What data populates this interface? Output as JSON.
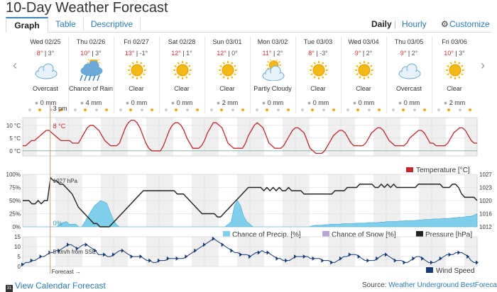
{
  "title": "10-Day Weather Forecast",
  "tabs": [
    {
      "label": "Graph",
      "active": true
    },
    {
      "label": "Table",
      "active": false
    },
    {
      "label": "Descriptive",
      "active": false
    }
  ],
  "view_toggle": {
    "daily": "Daily",
    "separator": "|",
    "hourly": "Hourly"
  },
  "customize": {
    "label": "Customize",
    "icon": "gear-icon"
  },
  "nav": {
    "prev": "‹",
    "next": "›"
  },
  "days": [
    {
      "name": "Wed 02/25",
      "hi": "8°",
      "lo": "3°",
      "icon": "cloud-icon",
      "cond": "Overcast",
      "precip": "0 mm",
      "precip_icon": "rain-drop-icon"
    },
    {
      "name": "Thu 02/26",
      "hi": "10°",
      "lo": "3°",
      "icon": "rain-cloud-icon",
      "cond": "Chance of Rain",
      "precip": "4 mm",
      "precip_icon": "rain-drop-icon"
    },
    {
      "name": "Fri 02/27",
      "hi": "13°",
      "lo": "-1°",
      "icon": "sun-icon",
      "cond": "Clear",
      "precip": "0 mm",
      "precip_icon": "rain-drop-icon"
    },
    {
      "name": "Sat 02/28",
      "hi": "12°",
      "lo": "1°",
      "icon": "sun-icon",
      "cond": "Clear",
      "precip": "0 mm",
      "precip_icon": "rain-drop-icon"
    },
    {
      "name": "Sun 03/01",
      "hi": "12°",
      "lo": "0°",
      "icon": "sun-icon",
      "cond": "Clear",
      "precip": "2 mm",
      "precip_icon": "rain-drop-icon"
    },
    {
      "name": "Mon 03/02",
      "hi": "11°",
      "lo": "2°",
      "icon": "partly-cloudy-icon",
      "cond": "Partly Cloudy",
      "precip": "0 mm",
      "precip_icon": "rain-drop-icon"
    },
    {
      "name": "Tue 03/03",
      "hi": "8°",
      "lo": "-3°",
      "icon": "sun-icon",
      "cond": "Clear",
      "precip": "0 mm",
      "precip_icon": "rain-drop-icon"
    },
    {
      "name": "Wed 03/04",
      "hi": "9°",
      "lo": "2°",
      "icon": "sun-icon",
      "cond": "Clear",
      "precip": "0 mm",
      "precip_icon": "rain-drop-icon"
    },
    {
      "name": "Thu 03/05",
      "hi": "9°",
      "lo": "2°",
      "icon": "cloud-icon",
      "cond": "Overcast",
      "precip": "0 mm",
      "precip_icon": "rain-drop-icon"
    },
    {
      "name": "Fri 03/06",
      "hi": "10°",
      "lo": "3°",
      "icon": "sun-icon",
      "cond": "Clear",
      "precip": "2 mm",
      "precip_icon": "rain-drop-icon"
    }
  ],
  "cursor": {
    "time": "3 pm",
    "temperature": "8 °C",
    "pressure": "1027 hPa",
    "precip": "0%",
    "wind": "5 km/h from SSE",
    "forecast_label": "Forecast →"
  },
  "temperature_chart": {
    "yticks": [
      "10 °C",
      "5 °C",
      "0 °C"
    ],
    "legend": "Temperature [°C]",
    "series": [
      2,
      2,
      3,
      4,
      4,
      5,
      6,
      7,
      8,
      8,
      7,
      6,
      5,
      4,
      4,
      4,
      4,
      3,
      3,
      3,
      5,
      7,
      9,
      10,
      10,
      9,
      8,
      6,
      4,
      3,
      2,
      2,
      2,
      3,
      6,
      9,
      11,
      12,
      12,
      11,
      9,
      6,
      3,
      1,
      0,
      0,
      0,
      0,
      2,
      5,
      8,
      10,
      11,
      11,
      10,
      8,
      5,
      3,
      1,
      1,
      1,
      2,
      4,
      7,
      9,
      11,
      11,
      10,
      9,
      6,
      3,
      2,
      1,
      1,
      1,
      1,
      3,
      6,
      8,
      10,
      11,
      10,
      9,
      6,
      3,
      2,
      1,
      1,
      1,
      2,
      4,
      6,
      8,
      9,
      9,
      8,
      7,
      4,
      1,
      0,
      -1,
      -1,
      -1,
      0,
      2,
      4,
      6,
      7,
      8,
      8,
      7,
      5,
      3,
      2,
      2,
      2,
      2,
      3,
      5,
      7,
      8,
      9,
      9,
      8,
      6,
      4,
      3,
      2,
      2,
      2,
      2,
      3,
      5,
      6,
      7,
      8,
      8,
      7,
      5,
      3,
      3,
      2,
      2,
      2,
      2,
      3,
      5,
      7,
      8,
      9,
      9,
      8,
      6,
      4,
      3,
      3
    ]
  },
  "precip_chart": {
    "yticks_left": [
      "100%",
      "75%",
      "50%",
      "25%",
      "0%"
    ],
    "yticks_right": [
      "1027",
      "1023",
      "1020",
      "1016",
      "1012"
    ],
    "legend_precip": "Chance of Precip. [%]",
    "legend_snow": "Chance of Snow [%]",
    "legend_pressure": "Pressure [hPa]",
    "precip": [
      0,
      0,
      0,
      0,
      0,
      0,
      0,
      0,
      0,
      0,
      0,
      0,
      5,
      8,
      10,
      5,
      5,
      5,
      0,
      0,
      10,
      20,
      30,
      40,
      45,
      50,
      48,
      45,
      30,
      15,
      5,
      0,
      0,
      0,
      0,
      0,
      0,
      0,
      0,
      0,
      0,
      0,
      0,
      0,
      0,
      0,
      0,
      0,
      0,
      0,
      0,
      0,
      0,
      0,
      0,
      0,
      0,
      0,
      0,
      0,
      0,
      0,
      0,
      0,
      0,
      0,
      5,
      10,
      40,
      50,
      40,
      20,
      10,
      5,
      0,
      0,
      0,
      0,
      0,
      0,
      0,
      0,
      0,
      0,
      0,
      0,
      0,
      0,
      0,
      0,
      0,
      0,
      0,
      2,
      3,
      3,
      3,
      4,
      4,
      5,
      5,
      5,
      5,
      6,
      6,
      6,
      6,
      7,
      7,
      7,
      7,
      8,
      8,
      8,
      8,
      9,
      9,
      10,
      10,
      10,
      10,
      11,
      11,
      12,
      12,
      12,
      12,
      13,
      13,
      14,
      14,
      14,
      15,
      15,
      15,
      16,
      16,
      16,
      17,
      17,
      18,
      18,
      19,
      20,
      20,
      22,
      25
    ],
    "pressure": [
      1020,
      1020,
      1020,
      1019,
      1019,
      1020,
      1019,
      1020,
      1020,
      1027,
      1026,
      1026,
      1025,
      1025,
      1024,
      1023,
      1022,
      1020,
      1018,
      1017,
      1016,
      1015,
      1014,
      1013,
      1013,
      1012,
      1012,
      1012,
      1012,
      1013,
      1014,
      1015,
      1016,
      1017,
      1018,
      1019,
      1020,
      1021,
      1022,
      1023,
      1023,
      1023,
      1023,
      1023,
      1023,
      1023,
      1023,
      1023,
      1023,
      1023,
      1022,
      1022,
      1022,
      1021,
      1020,
      1019,
      1018,
      1017,
      1016,
      1016,
      1016,
      1016,
      1016,
      1015,
      1015,
      1016,
      1017,
      1018,
      1019,
      1020,
      1021,
      1022,
      1023,
      1024,
      1024,
      1024,
      1024,
      1024,
      1023,
      1024,
      1023,
      1024,
      1023,
      1024,
      1023,
      1023,
      1024,
      1023,
      1023,
      1023,
      1023,
      1022,
      1022,
      1022,
      1022,
      1022,
      1022,
      1022,
      1022,
      1022,
      1022,
      1023,
      1023,
      1023,
      1023,
      1024,
      1024,
      1024,
      1024,
      1025,
      1025,
      1025,
      1025,
      1025,
      1024,
      1024,
      1025,
      1024,
      1025,
      1024,
      1025,
      1024,
      1024,
      1024,
      1024,
      1024,
      1024,
      1024,
      1025,
      1025,
      1025,
      1025,
      1025,
      1025,
      1025,
      1025,
      1024,
      1024,
      1024,
      1025,
      1025,
      1024,
      1022,
      1021,
      1021,
      1021,
      1021,
      1020
    ]
  },
  "wind_chart": {
    "yticks": [
      "15",
      "10",
      "5",
      "0"
    ],
    "legend": "Wind Speed",
    "series": [
      1,
      2,
      2,
      3,
      3,
      4,
      5,
      5,
      6,
      7,
      7,
      8,
      8,
      9,
      10,
      11,
      11,
      10,
      9,
      10,
      11,
      11,
      10,
      9,
      8,
      6,
      6,
      6,
      5,
      5,
      6,
      7,
      8,
      8,
      7,
      6,
      5,
      5,
      5,
      5,
      4,
      3,
      3,
      2,
      2,
      3,
      3,
      3,
      4,
      4,
      4,
      4,
      4,
      4,
      5,
      6,
      7,
      8,
      9,
      10,
      11,
      12,
      13,
      14,
      13,
      12,
      11,
      10,
      9,
      8,
      7,
      7,
      6,
      6,
      6,
      5,
      6,
      7,
      7,
      8,
      7,
      7,
      6,
      5,
      4,
      4,
      3,
      3,
      3,
      4,
      5,
      5,
      5,
      5,
      5,
      4,
      4,
      4,
      4,
      3,
      3,
      3,
      2,
      2,
      3,
      4,
      5,
      5,
      6,
      6,
      6,
      5,
      4,
      3,
      3,
      3,
      3,
      4,
      5,
      6,
      6,
      5,
      4,
      3,
      3,
      3,
      2,
      2,
      3,
      4,
      5,
      5,
      4,
      3,
      2,
      2,
      2,
      3,
      4,
      5,
      6,
      6,
      6,
      7,
      7,
      7,
      6,
      5,
      3,
      2,
      2
    ]
  },
  "colors": {
    "temperature": "#c0272d",
    "precip": "#7fcfea",
    "pressure": "#222222",
    "snow": "#b7a7d0",
    "wind": "#173a78",
    "link": "#2a7ab5"
  },
  "footer": {
    "calendar_link": "View Calendar Forecast",
    "source_label": "Source:",
    "source_link": "Weather Underground BestForecast"
  }
}
